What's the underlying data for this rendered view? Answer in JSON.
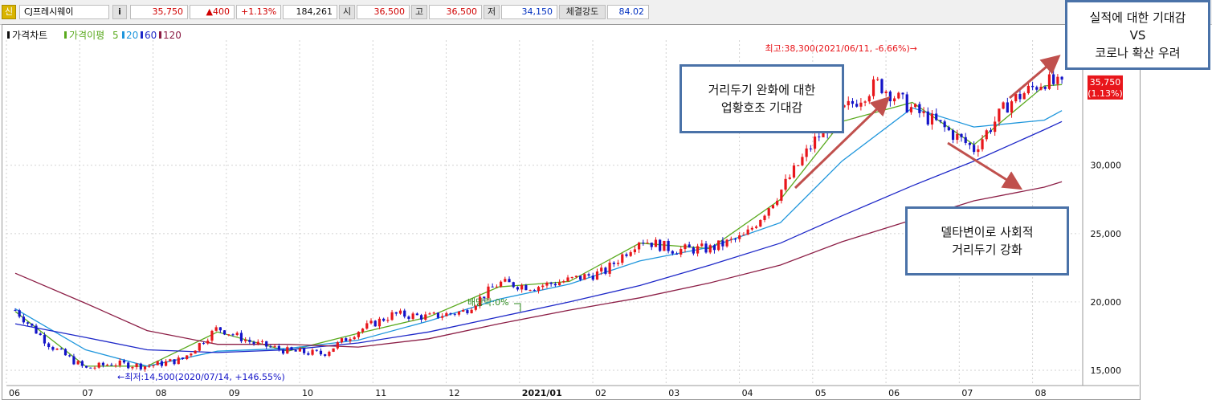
{
  "toolbar": {
    "badge": "신",
    "stock_name": "CJ프레시웨이",
    "info_button": "i",
    "price": "35,750",
    "change": "▲400",
    "change_pct": "+1.13%",
    "volume": "184,261",
    "open_label": "시",
    "open_value": "36,500",
    "high_label": "고",
    "high_value": "36,500",
    "low_label": "저",
    "low_value": "34,150",
    "strength_label": "체결강도",
    "strength_value": "84.02"
  },
  "legend": {
    "price_chart": "가격차트",
    "ma_label": "가격이평",
    "ma5": "5",
    "ma20": "20",
    "ma60": "60",
    "ma120": "120"
  },
  "annotations": {
    "high": "최고:38,300(2021/06/11, -6.66%)→",
    "low": "←최저:14,500(2020/07/14, +146.55%)",
    "dividend": "배당락:0%"
  },
  "price_tag": {
    "value": "35,750",
    "pct": "(1.13%)"
  },
  "callouts": {
    "c1": [
      "거리두기 완화에 대한",
      "업황호조 기대감"
    ],
    "c2": [
      "델타변이로 사회적",
      "거리두기 강화"
    ],
    "c3": [
      "실적에 대한 기대감",
      "VS",
      "코로나 확산 우려"
    ]
  },
  "colors": {
    "up": "#e8161b",
    "down": "#1414c8",
    "ma5": "#5aaa1e",
    "ma20": "#1e96dc",
    "ma60": "#1e28c8",
    "ma120": "#8c1e46",
    "arrow": "#c0504d",
    "callout_border": "#4a72a8"
  },
  "chart_data": {
    "type": "candlestick",
    "title": "",
    "x_ticks": [
      "06",
      "07",
      "08",
      "09",
      "10",
      "11",
      "12",
      "2021/01",
      "02",
      "03",
      "04",
      "05",
      "06",
      "07",
      "08"
    ],
    "y_ticks": [
      "15,000",
      "20,000",
      "25,000",
      "30,000"
    ],
    "ylim": [
      14000,
      38800
    ],
    "xlim": [
      2020.42,
      2021.64
    ],
    "grid": true,
    "series": [
      {
        "name": "가격차트",
        "kind": "candles",
        "x": [
          2020.43,
          2020.47,
          2020.51,
          2020.54,
          2020.58,
          2020.62,
          2020.66,
          2020.7,
          2020.74,
          2020.78,
          2020.82,
          2020.86,
          2020.9,
          2020.94,
          2020.98,
          2021.02,
          2021.06,
          2021.1,
          2021.14,
          2021.18,
          2021.22,
          2021.26,
          2021.3,
          2021.34,
          2021.37,
          2021.41,
          2021.45,
          2021.48,
          2021.52,
          2021.56,
          2021.6,
          2021.62
        ],
        "close": [
          19400,
          16800,
          15100,
          15500,
          15300,
          15800,
          18100,
          17000,
          16400,
          16200,
          17900,
          19100,
          18900,
          19300,
          21400,
          21100,
          21600,
          22200,
          24600,
          23800,
          23900,
          24800,
          28100,
          31900,
          33900,
          36000,
          34100,
          33000,
          31200,
          34600,
          36200,
          35750
        ]
      },
      {
        "name": "5",
        "kind": "line",
        "x": [
          2020.43,
          2020.51,
          2020.58,
          2020.66,
          2020.74,
          2020.82,
          2020.9,
          2020.98,
          2021.06,
          2021.14,
          2021.22,
          2021.3,
          2021.37,
          2021.45,
          2021.52,
          2021.6,
          2021.62
        ],
        "y": [
          19300,
          15300,
          15300,
          17800,
          16400,
          17700,
          18900,
          21100,
          21500,
          24300,
          23900,
          27500,
          33200,
          34600,
          31500,
          35800,
          35900
        ]
      },
      {
        "name": "20",
        "kind": "line",
        "x": [
          2020.43,
          2020.51,
          2020.58,
          2020.66,
          2020.74,
          2020.82,
          2020.9,
          2020.98,
          2021.06,
          2021.14,
          2021.22,
          2021.3,
          2021.37,
          2021.45,
          2021.52,
          2021.6,
          2021.62
        ],
        "y": [
          19500,
          16500,
          15300,
          16400,
          16600,
          17200,
          18600,
          20200,
          21300,
          23000,
          24000,
          25800,
          30300,
          34200,
          32800,
          33300,
          34000
        ]
      },
      {
        "name": "60",
        "kind": "line",
        "x": [
          2020.43,
          2020.51,
          2020.58,
          2020.66,
          2020.74,
          2020.82,
          2020.9,
          2020.98,
          2021.06,
          2021.14,
          2021.22,
          2021.3,
          2021.37,
          2021.45,
          2021.52,
          2021.6,
          2021.62
        ],
        "y": [
          18400,
          17400,
          16500,
          16300,
          16500,
          17000,
          17800,
          18900,
          20000,
          21200,
          22700,
          24300,
          26300,
          28500,
          30300,
          32600,
          33200
        ]
      },
      {
        "name": "120",
        "kind": "line",
        "x": [
          2020.43,
          2020.51,
          2020.58,
          2020.66,
          2020.74,
          2020.82,
          2020.9,
          2020.98,
          2021.06,
          2021.14,
          2021.22,
          2021.3,
          2021.37,
          2021.45,
          2021.52,
          2021.6,
          2021.62
        ],
        "y": [
          22100,
          19900,
          17900,
          16900,
          16900,
          16700,
          17300,
          18400,
          19400,
          20300,
          21400,
          22700,
          24400,
          26000,
          27400,
          28400,
          28800
        ]
      }
    ]
  }
}
